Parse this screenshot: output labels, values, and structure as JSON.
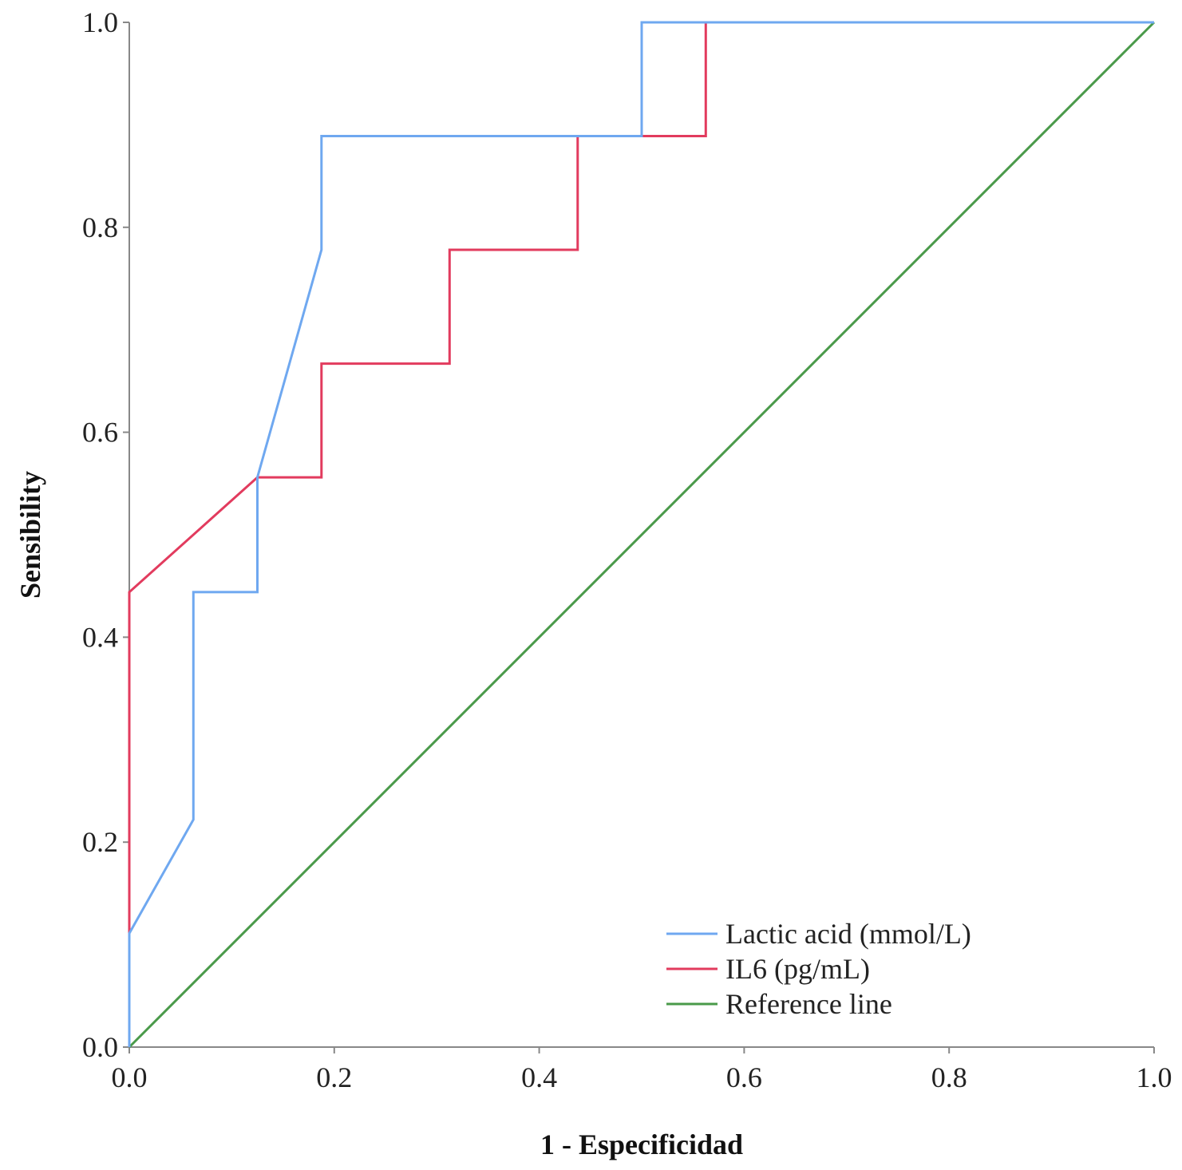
{
  "chart_data": {
    "type": "line",
    "title": "",
    "xlabel": "1 - Especificidad",
    "ylabel": "Sensibility",
    "xlim": [
      0,
      1
    ],
    "ylim": [
      0,
      1
    ],
    "grid": false,
    "legend_position": "bottom-right",
    "x_ticks": [
      0.0,
      0.2,
      0.4,
      0.6,
      0.8,
      1.0
    ],
    "y_ticks": [
      0.0,
      0.2,
      0.4,
      0.6,
      0.8,
      1.0
    ],
    "x_tick_labels": [
      "0.0",
      "0.2",
      "0.4",
      "0.6",
      "0.8",
      "1.0"
    ],
    "y_tick_labels": [
      "0.0",
      "0.2",
      "0.4",
      "0.6",
      "0.8",
      "1.0"
    ],
    "series": [
      {
        "name": "Lactic acid (mmol/L)",
        "color": "#6fa8f0",
        "x": [
          0.0,
          0.0,
          0.0625,
          0.0625,
          0.125,
          0.125,
          0.1875,
          0.1875,
          0.5,
          0.5,
          1.0
        ],
        "y": [
          0.0,
          0.111,
          0.222,
          0.444,
          0.444,
          0.556,
          0.778,
          0.889,
          0.889,
          1.0,
          1.0
        ]
      },
      {
        "name": "IL6 (pg/mL)",
        "color": "#e23b5e",
        "x": [
          0.0,
          0.0,
          0.125,
          0.1875,
          0.1875,
          0.3125,
          0.3125,
          0.4375,
          0.4375,
          0.5625,
          0.5625,
          1.0
        ],
        "y": [
          0.0,
          0.444,
          0.556,
          0.556,
          0.667,
          0.667,
          0.778,
          0.778,
          0.889,
          0.889,
          1.0,
          1.0
        ]
      },
      {
        "name": "Reference line",
        "color": "#4a9a4a",
        "x": [
          0.0,
          1.0
        ],
        "y": [
          0.0,
          1.0
        ]
      }
    ]
  }
}
